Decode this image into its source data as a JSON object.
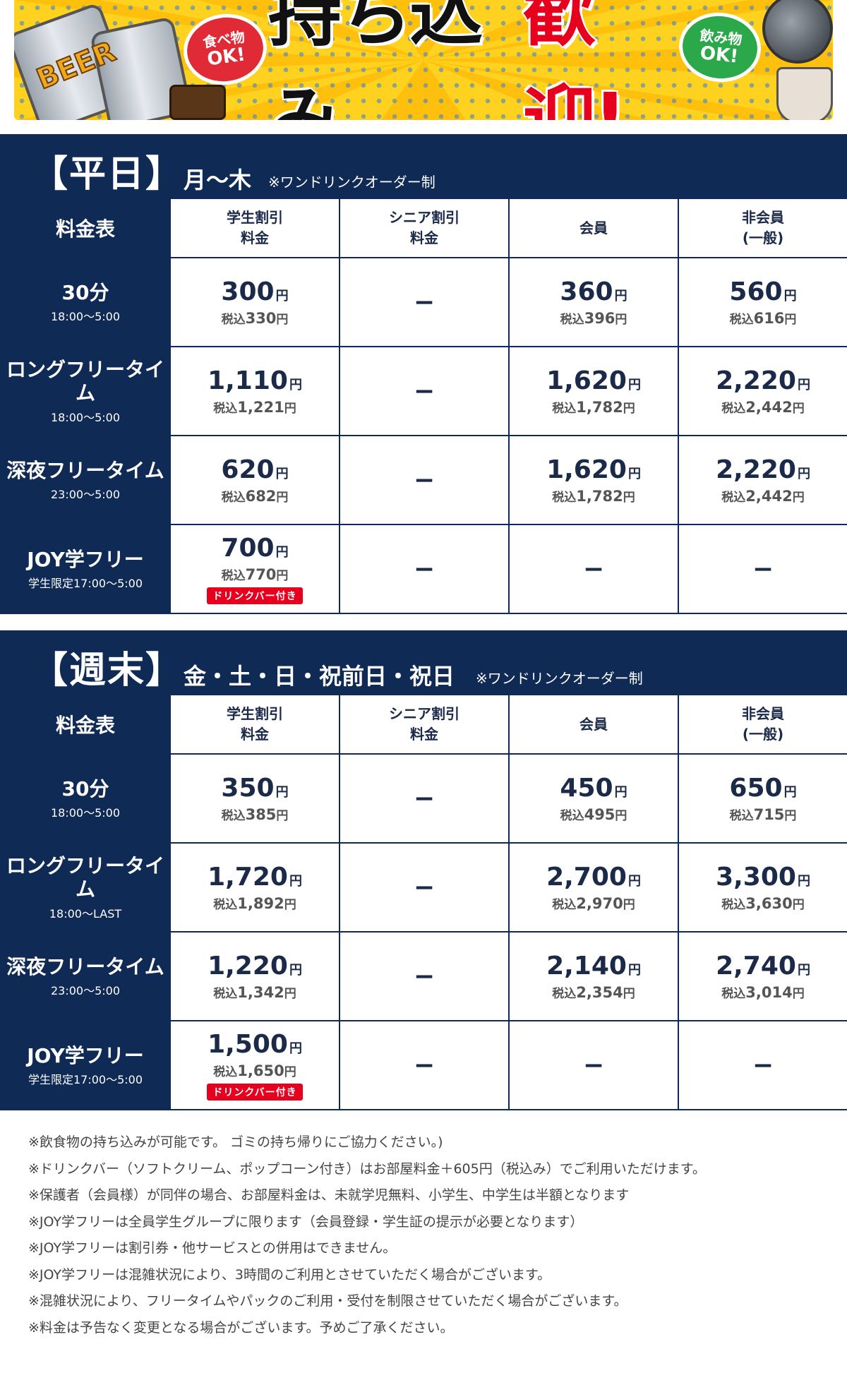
{
  "banner": {
    "headline_part1": "持ち込み",
    "headline_part2": "歓迎!",
    "food_bubble_line1": "食べ物",
    "food_bubble_line2": "OK!",
    "drink_bubble_line1": "飲み物",
    "drink_bubble_line2": "OK!",
    "can_label": "BEER",
    "colors": {
      "background": "#ffd21f",
      "red": "#e6001e",
      "green": "#2ba84a"
    }
  },
  "theme": {
    "navy": "#0f2a55",
    "text": "#1c2a4a",
    "badge_red": "#e6001e"
  },
  "weekday": {
    "title": "【平日】",
    "days": "月〜木",
    "note": "※ワンドリンクオーダー制",
    "table_label": "料金表",
    "columns": [
      {
        "line1": "学生割引",
        "line2": "料金"
      },
      {
        "line1": "シニア割引",
        "line2": "料金"
      },
      {
        "line1": "会員",
        "line2": ""
      },
      {
        "line1": "非会員",
        "line2": "(一般)"
      }
    ],
    "rows": [
      {
        "title": "30分",
        "time": "18:00〜5:00",
        "cells": [
          {
            "price": "300",
            "tax": "330"
          },
          {
            "dash": "−"
          },
          {
            "price": "360",
            "tax": "396"
          },
          {
            "price": "560",
            "tax": "616"
          }
        ]
      },
      {
        "title": "ロングフリータイム",
        "time": "18:00〜5:00",
        "cells": [
          {
            "price": "1,110",
            "tax": "1,221"
          },
          {
            "dash": "−"
          },
          {
            "price": "1,620",
            "tax": "1,782"
          },
          {
            "price": "2,220",
            "tax": "2,442"
          }
        ]
      },
      {
        "title": "深夜フリータイム",
        "time": "23:00〜5:00",
        "cells": [
          {
            "price": "620",
            "tax": "682"
          },
          {
            "dash": "−"
          },
          {
            "price": "1,620",
            "tax": "1,782"
          },
          {
            "price": "2,220",
            "tax": "2,442"
          }
        ]
      },
      {
        "title": "JOY学フリー",
        "time": "学生限定17:00〜5:00",
        "cells": [
          {
            "price": "700",
            "tax": "770",
            "badge": "ドリンクバー付き"
          },
          {
            "dash": "−"
          },
          {
            "dash": "−"
          },
          {
            "dash": "−"
          }
        ]
      }
    ]
  },
  "weekend": {
    "title": "【週末】",
    "days": "金・土・日・祝前日・祝日",
    "note": "※ワンドリンクオーダー制",
    "table_label": "料金表",
    "columns": [
      {
        "line1": "学生割引",
        "line2": "料金"
      },
      {
        "line1": "シニア割引",
        "line2": "料金"
      },
      {
        "line1": "会員",
        "line2": ""
      },
      {
        "line1": "非会員",
        "line2": "(一般)"
      }
    ],
    "rows": [
      {
        "title": "30分",
        "time": "18:00〜5:00",
        "cells": [
          {
            "price": "350",
            "tax": "385"
          },
          {
            "dash": "−"
          },
          {
            "price": "450",
            "tax": "495"
          },
          {
            "price": "650",
            "tax": "715"
          }
        ]
      },
      {
        "title": "ロングフリータイム",
        "time": "18:00〜LAST",
        "cells": [
          {
            "price": "1,720",
            "tax": "1,892"
          },
          {
            "dash": "−"
          },
          {
            "price": "2,700",
            "tax": "2,970"
          },
          {
            "price": "3,300",
            "tax": "3,630"
          }
        ]
      },
      {
        "title": "深夜フリータイム",
        "time": "23:00〜5:00",
        "cells": [
          {
            "price": "1,220",
            "tax": "1,342"
          },
          {
            "dash": "−"
          },
          {
            "price": "2,140",
            "tax": "2,354"
          },
          {
            "price": "2,740",
            "tax": "3,014"
          }
        ]
      },
      {
        "title": "JOY学フリー",
        "time": "学生限定17:00〜5:00",
        "cells": [
          {
            "price": "1,500",
            "tax": "1,650",
            "badge": "ドリンクバー付き"
          },
          {
            "dash": "−"
          },
          {
            "dash": "−"
          },
          {
            "dash": "−"
          }
        ]
      }
    ]
  },
  "labels": {
    "tax_prefix": "税込",
    "yen": "円"
  },
  "notes": [
    "※飲食物の持ち込みが可能です。 ゴミの持ち帰りにご協力ください。)",
    "※ドリンクバー（ソフトクリーム、ポップコーン付き）はお部屋料金＋605円（税込み）でご利用いただけます。",
    "※保護者（会員様）が同伴の場合、お部屋料金は、未就学児無料、小学生、中学生は半額となります",
    "※JOY学フリーは全員学生グループに限ります（会員登録・学生証の提示が必要となります）",
    "※JOY学フリーは割引券・他サービスとの併用はできません。",
    "※JOY学フリーは混雑状況により、3時間のご利用とさせていただく場合がございます。",
    "※混雑状況により、フリータイムやパックのご利用・受付を制限させていただく場合がございます。",
    "※料金は予告なく変更となる場合がございます。予めご了承ください。"
  ]
}
